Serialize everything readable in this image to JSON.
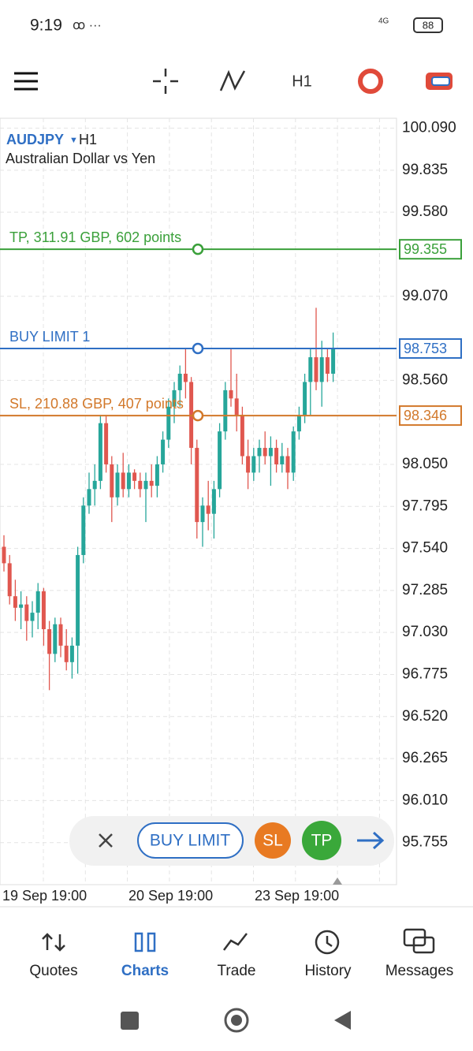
{
  "status_bar": {
    "time": "9:19",
    "network": "4G",
    "battery": "88"
  },
  "toolbar": {
    "timeframe": "H1"
  },
  "chart_data": {
    "type": "candlestick",
    "symbol": "AUDJPY",
    "timeframe": "H1",
    "description": "Australian Dollar vs Yen",
    "open": [
      97.55,
      97.45,
      97.25,
      97.18,
      97.2,
      97.1,
      97.15,
      97.28,
      97.05,
      96.9,
      97.08,
      96.95,
      96.85,
      96.95,
      97.5,
      97.8,
      97.9,
      97.95,
      98.3,
      98.05,
      97.85,
      98.0,
      97.9,
      98.0,
      97.95,
      97.9,
      97.95,
      97.92,
      98.05,
      98.2,
      98.4,
      98.5,
      98.6,
      98.55,
      98.15,
      97.7,
      97.8,
      97.75,
      97.9,
      98.25,
      98.5,
      98.45,
      98.35,
      98.1,
      98.0,
      98.1,
      98.15,
      98.1,
      98.15,
      98.05,
      98.1,
      98.0,
      98.25,
      98.35,
      98.55,
      98.7,
      98.55,
      98.7,
      98.6
    ],
    "high": [
      97.62,
      97.5,
      97.35,
      97.28,
      97.25,
      97.22,
      97.33,
      97.3,
      97.1,
      97.12,
      97.12,
      97.05,
      97.0,
      97.55,
      97.85,
      98.0,
      98.05,
      98.35,
      98.35,
      98.1,
      98.05,
      98.12,
      98.05,
      98.02,
      98.0,
      98.0,
      98.05,
      98.1,
      98.25,
      98.45,
      98.55,
      98.65,
      98.75,
      98.58,
      98.2,
      97.85,
      97.95,
      97.95,
      98.3,
      98.55,
      98.75,
      98.6,
      98.4,
      98.2,
      98.15,
      98.2,
      98.25,
      98.22,
      98.2,
      98.18,
      98.15,
      98.28,
      98.4,
      98.6,
      98.75,
      99.0,
      98.8,
      98.75,
      98.85
    ],
    "low": [
      97.4,
      97.2,
      97.1,
      97.05,
      96.98,
      97.0,
      97.05,
      96.95,
      96.68,
      96.85,
      96.88,
      96.8,
      96.75,
      96.78,
      97.45,
      97.75,
      97.8,
      97.9,
      98.0,
      97.7,
      97.8,
      97.85,
      97.85,
      97.9,
      97.85,
      97.7,
      97.85,
      97.85,
      98.0,
      98.15,
      98.3,
      98.4,
      98.45,
      98.05,
      97.6,
      97.55,
      97.65,
      97.6,
      97.85,
      98.2,
      98.4,
      98.25,
      98.05,
      97.9,
      97.95,
      98.0,
      98.05,
      97.92,
      98.0,
      98.0,
      97.9,
      97.95,
      98.2,
      98.3,
      98.35,
      98.5,
      98.4,
      98.55,
      98.55
    ],
    "close": [
      97.45,
      97.25,
      97.18,
      97.2,
      97.1,
      97.15,
      97.28,
      97.05,
      96.9,
      97.08,
      96.95,
      96.85,
      96.95,
      97.5,
      97.8,
      97.9,
      97.95,
      98.3,
      98.05,
      97.85,
      98.0,
      97.9,
      98.0,
      97.95,
      97.9,
      97.95,
      97.92,
      98.05,
      98.2,
      98.4,
      98.5,
      98.6,
      98.55,
      98.15,
      97.7,
      97.8,
      97.75,
      97.9,
      98.25,
      98.5,
      98.45,
      98.35,
      98.1,
      98.0,
      98.1,
      98.15,
      98.1,
      98.15,
      98.05,
      98.1,
      98.0,
      98.25,
      98.35,
      98.55,
      98.7,
      98.55,
      98.7,
      98.6,
      98.75
    ],
    "up_color": "#26a69a",
    "down_color": "#e0574f",
    "ylim": [
      95.5,
      100.15
    ],
    "yticks": [
      {
        "value": 100.09,
        "label": "100.090"
      },
      {
        "value": 99.835,
        "label": "99.835"
      },
      {
        "value": 99.58,
        "label": "99.580"
      },
      {
        "value": 99.07,
        "label": "99.070"
      },
      {
        "value": 98.56,
        "label": "98.560"
      },
      {
        "value": 98.05,
        "label": "98.050"
      },
      {
        "value": 97.795,
        "label": "97.795"
      },
      {
        "value": 97.54,
        "label": "97.540"
      },
      {
        "value": 97.285,
        "label": "97.285"
      },
      {
        "value": 97.03,
        "label": "97.030"
      },
      {
        "value": 96.775,
        "label": "96.775"
      },
      {
        "value": 96.52,
        "label": "96.520"
      },
      {
        "value": 96.265,
        "label": "96.265"
      },
      {
        "value": 96.01,
        "label": "96.010"
      },
      {
        "value": 95.755,
        "label": "95.755"
      }
    ],
    "grid": true,
    "x_labels": [
      "19 Sep 19:00",
      "20 Sep 19:00",
      "23 Sep 19:00"
    ],
    "levels": [
      {
        "name": "TP, 311.91 GBP, 602 points",
        "value": 99.355,
        "color": "#3aa03a"
      },
      {
        "name": "BUY LIMIT 1",
        "value": 98.753,
        "color": "#2f6fc4"
      },
      {
        "name": "SL, 210.88 GBP, 407 points",
        "value": 98.346,
        "color": "#d2782a"
      }
    ]
  },
  "order_bar": {
    "buy_limit": "BUY LIMIT",
    "sl": "SL",
    "tp": "TP"
  },
  "nav": [
    "Quotes",
    "Charts",
    "Trade",
    "History",
    "Messages"
  ]
}
